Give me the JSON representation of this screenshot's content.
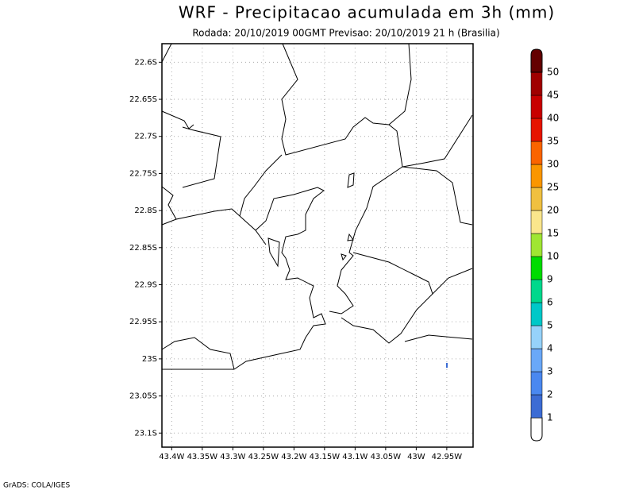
{
  "title": "WRF - Precipitacao acumulada em 3h (mm)",
  "subtitle": "Rodada: 20/10/2019 00GMT Previsao: 20/10/2019 21 h (Brasilia)",
  "map": {
    "xlim": [
      -43.416,
      -42.907
    ],
    "ylim": [
      -23.119,
      -22.575
    ],
    "xticks": [
      {
        "value": -43.4,
        "label": "43.4W"
      },
      {
        "value": -43.35,
        "label": "43.35W"
      },
      {
        "value": -43.3,
        "label": "43.3W"
      },
      {
        "value": -43.25,
        "label": "43.25W"
      },
      {
        "value": -43.2,
        "label": "43.2W"
      },
      {
        "value": -43.15,
        "label": "43.15W"
      },
      {
        "value": -43.1,
        "label": "43.1W"
      },
      {
        "value": -43.05,
        "label": "43.05W"
      },
      {
        "value": -43.0,
        "label": "43W"
      },
      {
        "value": -42.95,
        "label": "42.95W"
      }
    ],
    "yticks": [
      {
        "value": -22.6,
        "label": "22.6S"
      },
      {
        "value": -22.65,
        "label": "22.65S"
      },
      {
        "value": -22.7,
        "label": "22.7S"
      },
      {
        "value": -22.75,
        "label": "22.75S"
      },
      {
        "value": -22.8,
        "label": "22.8S"
      },
      {
        "value": -22.85,
        "label": "22.85S"
      },
      {
        "value": -22.9,
        "label": "22.9S"
      },
      {
        "value": -22.95,
        "label": "22.95S"
      },
      {
        "value": -23.0,
        "label": "23S"
      },
      {
        "value": -23.05,
        "label": "23.05S"
      },
      {
        "value": -23.1,
        "label": "23.1S"
      }
    ],
    "grid": true
  },
  "colorbar": {
    "levels": [
      1,
      2,
      3,
      4,
      5,
      6,
      9,
      10,
      15,
      20,
      25,
      30,
      35,
      40,
      45,
      50
    ],
    "colors": [
      "#ffffff",
      "#3c6cd4",
      "#4a88f0",
      "#6aa8f8",
      "#96d2fa",
      "#00c8c8",
      "#00d88c",
      "#00dc00",
      "#a0e632",
      "#fae68c",
      "#f0c040",
      "#fa9600",
      "#fa6400",
      "#e61400",
      "#c80000",
      "#a00000",
      "#640000"
    ]
  },
  "footer": "GrADS: COLA/IGES"
}
